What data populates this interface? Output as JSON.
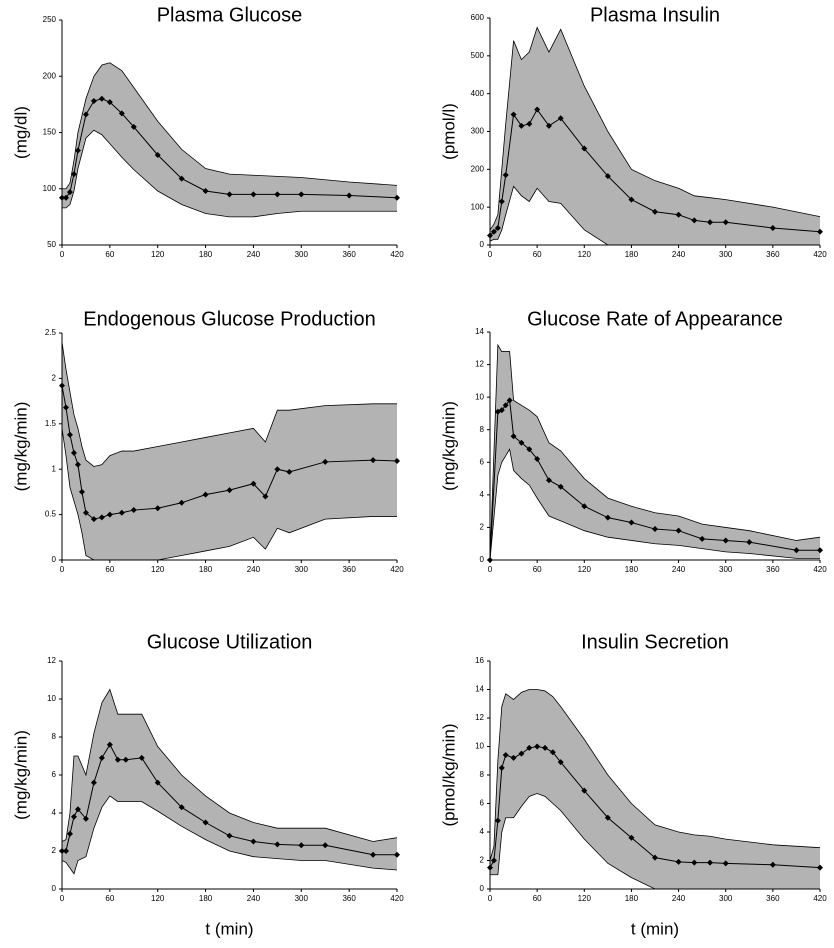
{
  "chart_data": [
    {
      "type": "line",
      "title": "Plasma Glucose",
      "ylabel": "(mg/dl)",
      "x": [
        0,
        5,
        10,
        15,
        20,
        30,
        40,
        50,
        60,
        75,
        90,
        120,
        150,
        180,
        210,
        240,
        270,
        300,
        360,
        420
      ],
      "series": [
        {
          "color": "#000000",
          "values": [
            92,
            92,
            97,
            113,
            134,
            166,
            178,
            180,
            177,
            167,
            155,
            130,
            109,
            98,
            95,
            95,
            95,
            95,
            94,
            92
          ]
        }
      ],
      "band": {
        "color": "#b3b3b3",
        "upper": [
          100,
          100,
          105,
          125,
          150,
          180,
          200,
          210,
          212,
          205,
          190,
          160,
          135,
          118,
          113,
          112,
          111,
          110,
          106,
          103
        ],
        "lower": [
          83,
          83,
          86,
          98,
          118,
          145,
          152,
          148,
          140,
          128,
          117,
          98,
          86,
          78,
          75,
          75,
          78,
          80,
          80,
          80
        ]
      },
      "xlim": [
        0,
        420
      ],
      "xticks": [
        0,
        60,
        120,
        180,
        240,
        300,
        360,
        420
      ],
      "ylim": [
        50,
        250
      ],
      "yticks": [
        50,
        100,
        150,
        200,
        250
      ]
    },
    {
      "type": "line",
      "title": "Plasma Insulin",
      "ylabel": "(pmol/l)",
      "x": [
        0,
        5,
        10,
        15,
        20,
        30,
        40,
        50,
        60,
        75,
        90,
        120,
        150,
        180,
        210,
        240,
        260,
        280,
        300,
        360,
        420
      ],
      "series": [
        {
          "color": "#000000",
          "values": [
            25,
            35,
            45,
            115,
            185,
            345,
            315,
            320,
            358,
            315,
            335,
            255,
            182,
            120,
            88,
            80,
            65,
            60,
            60,
            45,
            35
          ]
        }
      ],
      "band": {
        "color": "#b3b3b3",
        "upper": [
          40,
          55,
          80,
          200,
          320,
          540,
          490,
          510,
          575,
          510,
          570,
          420,
          300,
          200,
          170,
          150,
          130,
          125,
          120,
          100,
          75
        ],
        "lower": [
          10,
          15,
          15,
          40,
          80,
          155,
          130,
          115,
          150,
          115,
          110,
          40,
          0,
          0,
          0,
          0,
          0,
          0,
          0,
          0,
          0
        ]
      },
      "xlim": [
        0,
        420
      ],
      "xticks": [
        0,
        60,
        120,
        180,
        240,
        300,
        360,
        420
      ],
      "ylim": [
        0,
        600
      ],
      "yticks": [
        0,
        100,
        200,
        300,
        400,
        500,
        600
      ]
    },
    {
      "type": "line",
      "title": "Endogenous Glucose Production",
      "ylabel": "(mg/kg/min)",
      "x": [
        0,
        5,
        10,
        15,
        20,
        25,
        30,
        40,
        50,
        60,
        75,
        90,
        120,
        150,
        180,
        210,
        240,
        255,
        270,
        285,
        330,
        390,
        420
      ],
      "series": [
        {
          "color": "#000000",
          "values": [
            1.92,
            1.68,
            1.38,
            1.18,
            1.05,
            0.75,
            0.52,
            0.45,
            0.47,
            0.5,
            0.52,
            0.55,
            0.57,
            0.63,
            0.72,
            0.77,
            0.84,
            0.7,
            1.0,
            0.97,
            1.08,
            1.1,
            1.09
          ]
        }
      ],
      "band": {
        "color": "#b3b3b3",
        "upper": [
          2.4,
          2.1,
          1.85,
          1.6,
          1.45,
          1.25,
          1.1,
          1.03,
          1.05,
          1.15,
          1.2,
          1.2,
          1.25,
          1.3,
          1.35,
          1.4,
          1.45,
          1.3,
          1.65,
          1.65,
          1.7,
          1.72,
          1.72
        ],
        "lower": [
          1.45,
          1.15,
          0.8,
          0.65,
          0.5,
          0.3,
          0.05,
          0,
          0,
          0,
          0,
          0,
          0,
          0.05,
          0.1,
          0.15,
          0.25,
          0.12,
          0.35,
          0.3,
          0.45,
          0.48,
          0.48
        ]
      },
      "xlim": [
        0,
        420
      ],
      "xticks": [
        0,
        60,
        120,
        180,
        240,
        300,
        360,
        420
      ],
      "ylim": [
        0,
        2.5
      ],
      "yticks": [
        0,
        0.5,
        1,
        1.5,
        2,
        2.5
      ]
    },
    {
      "type": "line",
      "title": "Glucose Rate of Appearance",
      "ylabel": "(mg/kg/min)",
      "x": [
        0,
        10,
        15,
        20,
        25,
        30,
        40,
        50,
        60,
        75,
        90,
        120,
        150,
        180,
        210,
        240,
        270,
        300,
        330,
        390,
        420
      ],
      "series": [
        {
          "color": "#000000",
          "values": [
            0,
            9.1,
            9.2,
            9.5,
            9.8,
            7.6,
            7.2,
            6.8,
            6.2,
            4.9,
            4.5,
            3.3,
            2.6,
            2.3,
            1.9,
            1.8,
            1.3,
            1.2,
            1.1,
            0.6,
            0.6
          ]
        }
      ],
      "band": {
        "color": "#b3b3b3",
        "upper": [
          0,
          13.2,
          12.8,
          12.8,
          12.8,
          9.8,
          9.5,
          9.2,
          8.8,
          7.2,
          6.7,
          5.0,
          3.8,
          3.3,
          2.9,
          2.7,
          2.2,
          2.0,
          1.8,
          1.2,
          1.4
        ],
        "lower": [
          0,
          5.2,
          6.0,
          6.4,
          6.8,
          5.5,
          5.0,
          4.6,
          3.8,
          2.7,
          2.4,
          1.8,
          1.4,
          1.2,
          1.0,
          0.9,
          0.7,
          0.5,
          0.4,
          0.1,
          0.1
        ]
      },
      "xlim": [
        0,
        420
      ],
      "xticks": [
        0,
        60,
        120,
        180,
        240,
        300,
        360,
        420
      ],
      "ylim": [
        0,
        14
      ],
      "yticks": [
        0,
        2,
        4,
        6,
        8,
        10,
        12,
        14
      ]
    },
    {
      "type": "line",
      "title": "Glucose Utilization",
      "ylabel": "(mg/kg/min)",
      "xlabel": "t (min)",
      "x": [
        0,
        5,
        10,
        15,
        20,
        30,
        40,
        50,
        60,
        70,
        80,
        100,
        120,
        150,
        180,
        210,
        240,
        270,
        300,
        330,
        390,
        420
      ],
      "series": [
        {
          "color": "#000000",
          "values": [
            2,
            2,
            2.9,
            3.8,
            4.2,
            3.7,
            5.6,
            6.9,
            7.6,
            6.8,
            6.8,
            6.9,
            5.6,
            4.3,
            3.5,
            2.8,
            2.5,
            2.35,
            2.3,
            2.3,
            1.8,
            1.8
          ]
        }
      ],
      "band": {
        "color": "#b3b3b3",
        "upper": [
          2.5,
          2.6,
          4,
          7,
          7,
          6,
          8.2,
          9.8,
          10.5,
          9.2,
          9.2,
          9.2,
          7.5,
          6,
          4.9,
          4,
          3.5,
          3.2,
          3.2,
          3.2,
          2.5,
          2.7
        ],
        "lower": [
          1.5,
          1.4,
          1.1,
          0.8,
          1.5,
          1.7,
          3.2,
          4.3,
          4.9,
          4.6,
          4.6,
          4.6,
          4.1,
          3.3,
          2.6,
          2,
          1.7,
          1.6,
          1.5,
          1.5,
          1.1,
          1.0
        ]
      },
      "xlim": [
        0,
        420
      ],
      "xticks": [
        0,
        60,
        120,
        180,
        240,
        300,
        360,
        420
      ],
      "ylim": [
        0,
        12
      ],
      "yticks": [
        0,
        2,
        4,
        6,
        8,
        10,
        12
      ]
    },
    {
      "type": "line",
      "title": "Insulin Secretion",
      "ylabel": "(pmol/kg/min)",
      "xlabel": "t (min)",
      "x": [
        0,
        5,
        10,
        15,
        20,
        30,
        40,
        50,
        60,
        70,
        80,
        90,
        120,
        150,
        180,
        210,
        240,
        260,
        280,
        300,
        360,
        420
      ],
      "series": [
        {
          "color": "#000000",
          "values": [
            1.5,
            2,
            4.8,
            8.5,
            9.4,
            9.2,
            9.5,
            9.9,
            10,
            9.9,
            9.6,
            8.9,
            6.9,
            5.0,
            3.6,
            2.2,
            1.9,
            1.85,
            1.85,
            1.8,
            1.7,
            1.5
          ]
        }
      ],
      "band": {
        "color": "#b3b3b3",
        "upper": [
          2,
          3,
          9,
          12.8,
          13.7,
          13.3,
          13.8,
          14,
          14,
          13.9,
          13.5,
          12.8,
          10.5,
          8,
          6,
          4.5,
          4,
          3.8,
          3.7,
          3.5,
          3.1,
          2.9
        ],
        "lower": [
          1,
          1,
          1,
          4,
          5,
          5,
          5.8,
          6.5,
          6.7,
          6.5,
          6,
          5.5,
          3.5,
          1.8,
          0.8,
          0,
          0,
          0,
          0,
          0,
          0,
          0
        ]
      },
      "xlim": [
        0,
        420
      ],
      "xticks": [
        0,
        60,
        120,
        180,
        240,
        300,
        360,
        420
      ],
      "ylim": [
        0,
        16
      ],
      "yticks": [
        0,
        2,
        4,
        6,
        8,
        10,
        12,
        14,
        16
      ]
    }
  ]
}
